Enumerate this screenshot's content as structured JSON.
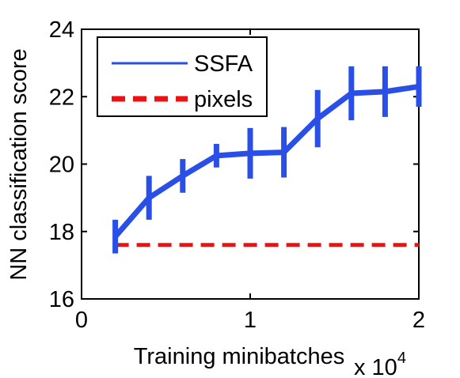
{
  "chart_data": {
    "type": "line",
    "title": "",
    "xlabel": "Training minibatches",
    "ylabel": "NN classification score",
    "x_multiplier": {
      "base": "x 10",
      "exponent": "4"
    },
    "xlim": [
      0,
      20000
    ],
    "ylim": [
      16,
      24
    ],
    "xticks": [
      0,
      10000,
      20000
    ],
    "xtick_labels": [
      "0",
      "1",
      "2"
    ],
    "yticks": [
      16,
      18,
      20,
      22,
      24
    ],
    "ytick_labels": [
      "16",
      "18",
      "20",
      "22",
      "24"
    ],
    "grid": false,
    "legend_position": "top-left",
    "series": [
      {
        "name": "SSFA",
        "color": "#2a4fe6",
        "style": "solid",
        "x": [
          2000,
          4000,
          6000,
          8000,
          10000,
          12000,
          14000,
          16000,
          18000,
          20000
        ],
        "values": [
          17.85,
          19.0,
          19.65,
          20.25,
          20.32,
          20.35,
          21.35,
          22.1,
          22.15,
          22.3
        ],
        "error": [
          0.5,
          0.65,
          0.5,
          0.35,
          0.75,
          0.75,
          0.85,
          0.8,
          0.75,
          0.6
        ]
      },
      {
        "name": "pixels",
        "color": "#ee1111",
        "style": "dashed",
        "x": [
          2000,
          20000
        ],
        "values": [
          17.6,
          17.6
        ]
      }
    ]
  }
}
